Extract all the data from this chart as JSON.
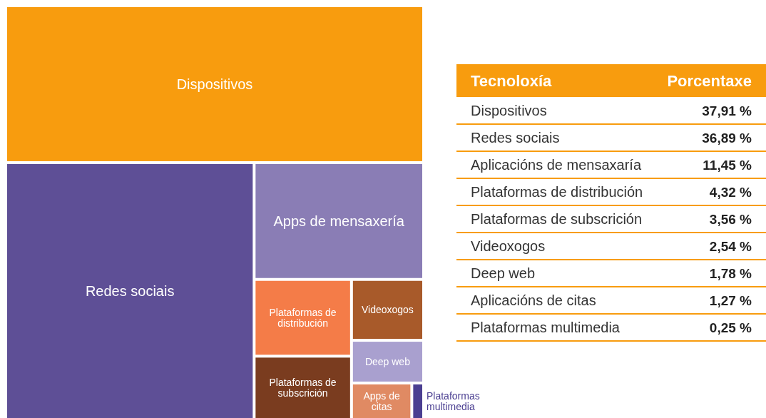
{
  "chart_data": [
    {
      "type": "other",
      "categories": [
        "Dispositivos",
        "Redes sociais",
        "Apps de mensaxería",
        "Plataformas de distribución",
        "Plataformas de subscrición",
        "Videoxogos",
        "Deep web",
        "Apps de citas",
        "Plataformas multimedia"
      ],
      "colors": [
        "#f89c0e",
        "#5e4f96",
        "#8a7db5",
        "#f47c48",
        "#7a3c1f",
        "#a85a2a",
        "#a9a0cf",
        "#e08a63",
        "#4b3f91"
      ]
    },
    {
      "type": "other",
      "annotations": [
        "Tecnoloxía",
        "Porcentaxe"
      ],
      "categories": [
        "Dispositivos",
        "Redes sociais",
        "Aplicacións de mensaxaría",
        "Plataformas de distribución",
        "Plataformas de subscrición",
        "Videoxogos",
        "Deep web",
        "Aplicacións de citas",
        "Plataformas multimedia"
      ],
      "values": [
        37.91,
        36.89,
        11.45,
        4.32,
        3.56,
        2.54,
        1.78,
        1.27,
        0.25
      ],
      "value_labels": [
        "37,91 %",
        "36,89 %",
        "11,45 %",
        "4,32 %",
        "3,56 %",
        "2,54 %",
        "1,78 %",
        "1,27 %",
        "0,25 %"
      ],
      "color": "#f89c0e"
    }
  ]
}
